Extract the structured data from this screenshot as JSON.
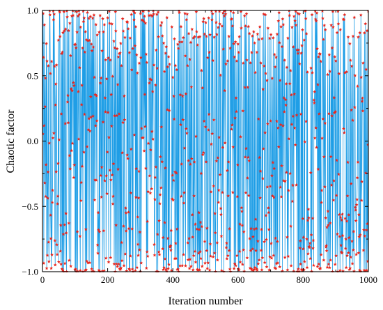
{
  "chart_data": {
    "type": "line",
    "title": "",
    "xlabel": "Iteration number",
    "ylabel": "Chaotic factor",
    "xlim": [
      0,
      1000
    ],
    "ylim": [
      -1.0,
      1.0
    ],
    "x_ticks": [
      0,
      200,
      400,
      600,
      800,
      1000
    ],
    "x_tick_labels": [
      "0",
      "200",
      "400",
      "600",
      "800",
      "1000"
    ],
    "y_ticks": [
      -1.0,
      -0.5,
      0.0,
      0.5,
      1.0
    ],
    "y_tick_labels": [
      "−1.0",
      "−0.5",
      "0.0",
      "0.5",
      "1.0"
    ],
    "grid": false,
    "legend": "none",
    "series": [
      {
        "line_color": "#1f9ee6",
        "marker_color": "#e8261d",
        "marker": "star",
        "points": 1000,
        "generator": "chebyshev-like chaotic sequence",
        "seed": 0.37
      }
    ]
  }
}
